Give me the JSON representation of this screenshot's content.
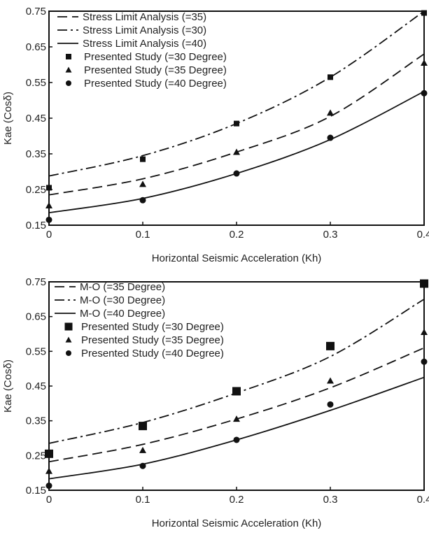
{
  "chart_data": [
    {
      "type": "line",
      "xlabel": "Horizontal Seismic Acceleration (Kh)",
      "ylabel": "Kae (Cosδ)",
      "xlim": [
        0,
        0.4
      ],
      "ylim": [
        0.15,
        0.75
      ],
      "x_ticks": [
        "0",
        "0.1",
        "0.2",
        "0.3",
        "0.4"
      ],
      "y_ticks": [
        "0.15",
        "0.25",
        "0.35",
        "0.45",
        "0.55",
        "0.65",
        "0.75"
      ],
      "legend_position": "top-left",
      "series": [
        {
          "name": "Stress Limit Analysis (=35)",
          "kind": "line",
          "dash": "dash",
          "x": [
            0,
            0.1,
            0.2,
            0.3,
            0.4
          ],
          "values": [
            0.235,
            0.28,
            0.355,
            0.455,
            0.63
          ]
        },
        {
          "name": "Stress Limit Analysis (=30)",
          "kind": "line",
          "dash": "dashdot",
          "x": [
            0,
            0.1,
            0.2,
            0.3,
            0.4
          ],
          "values": [
            0.288,
            0.345,
            0.435,
            0.565,
            0.75
          ]
        },
        {
          "name": "Stress Limit Analysis (=40)",
          "kind": "line",
          "dash": "solid",
          "x": [
            0,
            0.1,
            0.2,
            0.3,
            0.4
          ],
          "values": [
            0.185,
            0.225,
            0.295,
            0.39,
            0.525
          ]
        },
        {
          "name": "Presented Study (=30 Degree)",
          "kind": "marker",
          "marker": "square",
          "x": [
            0,
            0.1,
            0.2,
            0.3,
            0.4
          ],
          "values": [
            0.255,
            0.335,
            0.435,
            0.565,
            0.745
          ]
        },
        {
          "name": "Presented Study (=35 Degree)",
          "kind": "marker",
          "marker": "triangle",
          "x": [
            0,
            0.1,
            0.2,
            0.3,
            0.4
          ],
          "values": [
            0.205,
            0.265,
            0.355,
            0.465,
            0.605
          ]
        },
        {
          "name": "Presented Study (=40 Degree)",
          "kind": "marker",
          "marker": "circle",
          "x": [
            0,
            0.1,
            0.2,
            0.3,
            0.4
          ],
          "values": [
            0.165,
            0.22,
            0.295,
            0.395,
            0.52
          ]
        }
      ]
    },
    {
      "type": "line",
      "xlabel": "Horizontal Seismic Acceleration (Kh)",
      "ylabel": "Kae (Cosδ)",
      "xlim": [
        0,
        0.4
      ],
      "ylim": [
        0.15,
        0.75
      ],
      "x_ticks": [
        "0",
        "0.1",
        "0.2",
        "0.3",
        "0.4"
      ],
      "y_ticks": [
        "0.15",
        "0.25",
        "0.35",
        "0.45",
        "0.55",
        "0.65",
        "0.75"
      ],
      "legend_position": "top-left",
      "series": [
        {
          "name": "M-O (=35 Degree)",
          "kind": "line",
          "dash": "dash",
          "x": [
            0,
            0.1,
            0.2,
            0.3,
            0.4
          ],
          "values": [
            0.232,
            0.282,
            0.355,
            0.445,
            0.56
          ]
        },
        {
          "name": "M-O (=30 Degree)",
          "kind": "line",
          "dash": "dashdot",
          "x": [
            0,
            0.1,
            0.2,
            0.3,
            0.4
          ],
          "values": [
            0.285,
            0.345,
            0.43,
            0.535,
            0.7
          ]
        },
        {
          "name": "M-O (=40 Degree)",
          "kind": "line",
          "dash": "solid",
          "x": [
            0,
            0.1,
            0.2,
            0.3,
            0.4
          ],
          "values": [
            0.183,
            0.225,
            0.295,
            0.38,
            0.475
          ]
        },
        {
          "name": "Presented Study (=30 Degree)",
          "kind": "marker",
          "marker": "square",
          "x": [
            0,
            0.1,
            0.2,
            0.3,
            0.4
          ],
          "values": [
            0.255,
            0.335,
            0.435,
            0.565,
            0.745
          ]
        },
        {
          "name": "Presented Study (=35 Degree)",
          "kind": "marker",
          "marker": "triangle",
          "x": [
            0,
            0.1,
            0.2,
            0.3,
            0.4
          ],
          "values": [
            0.205,
            0.265,
            0.355,
            0.465,
            0.605
          ]
        },
        {
          "name": "Presented Study (=40 Degree)",
          "kind": "marker",
          "marker": "circle",
          "x": [
            0,
            0.1,
            0.2,
            0.3,
            0.4
          ],
          "values": [
            0.163,
            0.22,
            0.295,
            0.397,
            0.52
          ]
        }
      ]
    }
  ]
}
